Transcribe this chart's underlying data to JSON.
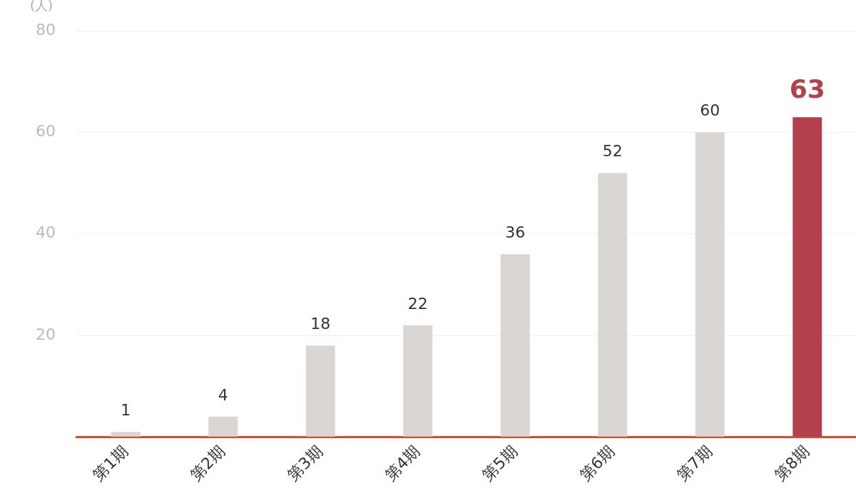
{
  "chart_data": {
    "type": "bar",
    "ylabel": "(人)",
    "categories": [
      "第1期",
      "第2期",
      "第3期",
      "第4期",
      "第5期",
      "第6期",
      "第7期",
      "第8期"
    ],
    "values": [
      1,
      4,
      18,
      22,
      36,
      52,
      60,
      63
    ],
    "colors": [
      "#d9d6d3",
      "#d9d6d3",
      "#d9d6d3",
      "#d9d6d3",
      "#d9d6d3",
      "#d9d6d3",
      "#d9d6d3",
      "#b4404e"
    ],
    "ylim": [
      0,
      80
    ],
    "yticks": [
      {
        "value": 0,
        "label": null
      },
      20,
      40,
      60,
      80
    ],
    "grid": "y",
    "data_labels": true,
    "legend": false
  }
}
